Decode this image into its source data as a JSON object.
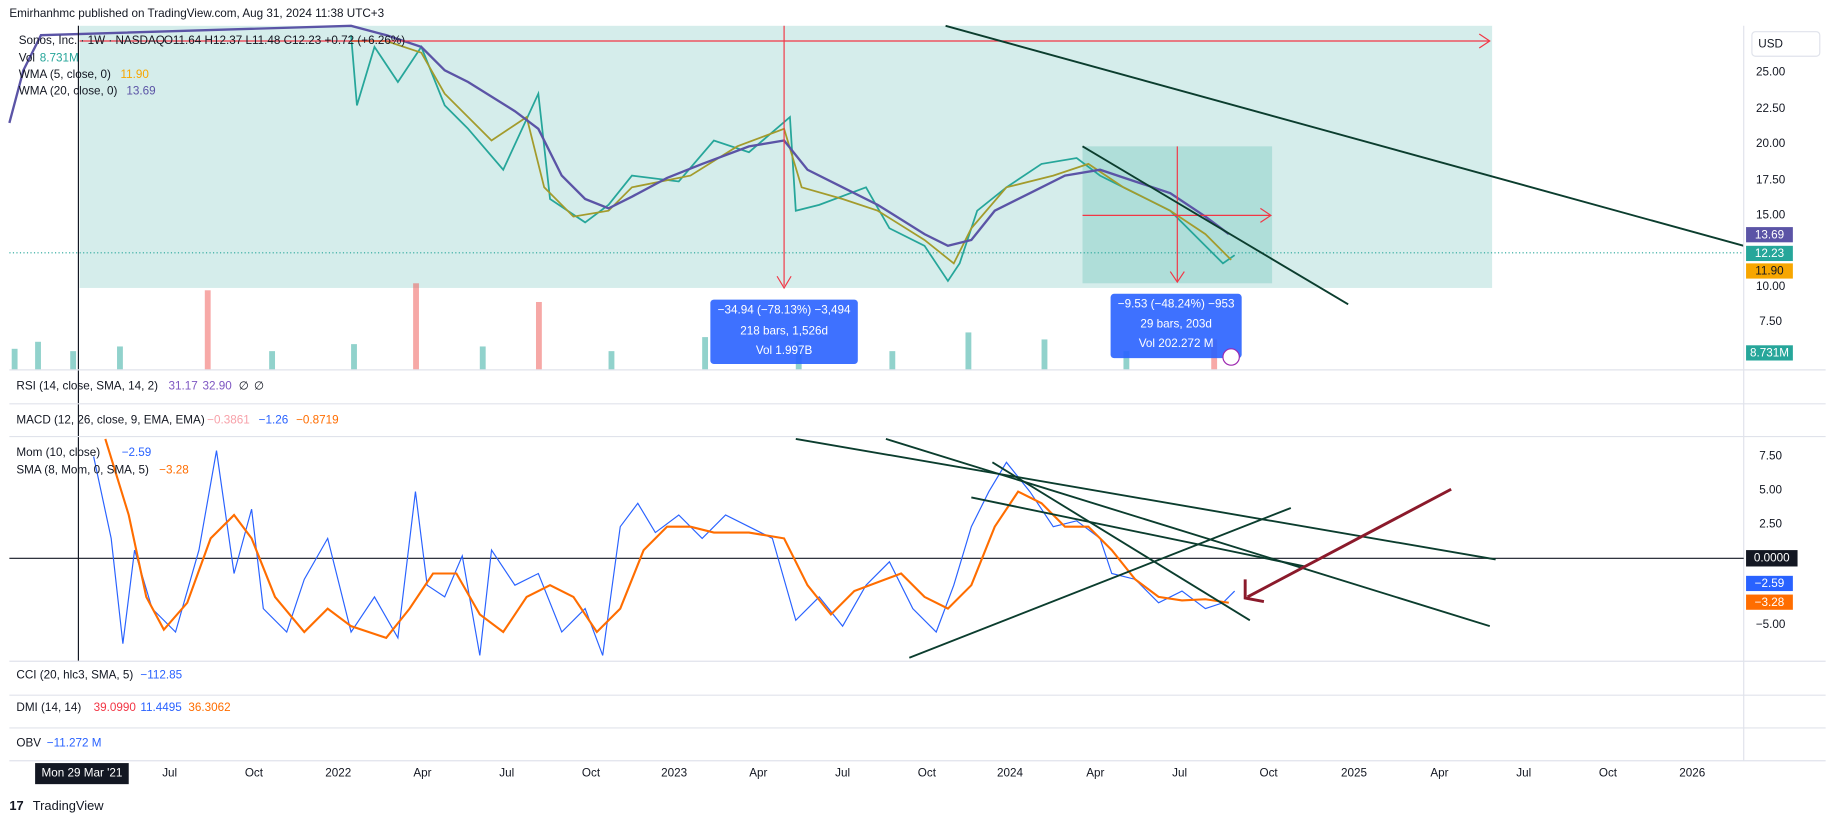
{
  "header": {
    "publisher": "Emirhanhmc published on TradingView.com, Aug 31, 2024 11:38 UTC+3"
  },
  "legend": {
    "symbol": "Sonos, Inc. · 1W · NASDAQ",
    "ohlc": "O11.64 H12.37 L11.48 C12.23 +0.72 (+6.26%)",
    "volume": {
      "label": "Vol",
      "value": "8.731M"
    },
    "wma5": {
      "label": "WMA (5, close, 0)",
      "value": "11.90"
    },
    "wma20": {
      "label": "WMA (20, close, 0)",
      "value": "13.69"
    }
  },
  "price_axis": {
    "currency": "USD",
    "ticks": [
      "25.00",
      "22.50",
      "20.00",
      "17.50",
      "15.00",
      "10.00",
      "7.50"
    ],
    "badges": {
      "wma20": "13.69",
      "close": "12.23",
      "wma5": "11.90",
      "volume": "8.731M"
    }
  },
  "measures": [
    {
      "change": "−34.94 (−78.13%) −3,494",
      "bars": "218 bars, 1,526d",
      "volume": "Vol 1.997B"
    },
    {
      "change": "−9.53 (−48.24%) −953",
      "bars": "29 bars, 203d",
      "volume": "Vol 202.272 M"
    }
  ],
  "panes": {
    "rsi": {
      "label": "RSI (14, close, SMA, 14, 2)",
      "values": [
        "31.17",
        "32.90",
        "∅",
        "∅"
      ]
    },
    "macd": {
      "label": "MACD (12, 26, close, 9, EMA, EMA)",
      "values": [
        "−0.3861",
        "−1.26",
        "−0.8719"
      ]
    },
    "mom": {
      "label": "Mom (10, close)",
      "value": "−2.59",
      "sma_label": "SMA (8, Mom, 0, SMA, 5)",
      "sma_value": "−3.28",
      "ticks": [
        "7.50",
        "5.00",
        "2.50",
        "−5.00"
      ],
      "zero": "0.0000",
      "badges": [
        "−2.59",
        "−3.28"
      ]
    },
    "cci": {
      "label": "CCI (20, hlc3, SMA, 5)",
      "value": "−112.85"
    },
    "dmi": {
      "label": "DMI (14, 14)",
      "values": [
        "39.0990",
        "11.4495",
        "36.3062"
      ]
    },
    "obv": {
      "label": "OBV",
      "value": "−11.272 M"
    }
  },
  "time_axis": {
    "cursor": "Mon 29 Mar '21",
    "labels": [
      "Jul",
      "Oct",
      "2022",
      "Apr",
      "Jul",
      "Oct",
      "2023",
      "Apr",
      "Jul",
      "Oct",
      "2024",
      "Apr",
      "Jul",
      "Oct",
      "2025",
      "Apr",
      "Jul",
      "Oct",
      "2026"
    ]
  },
  "footer": {
    "brand": "TradingView"
  }
}
